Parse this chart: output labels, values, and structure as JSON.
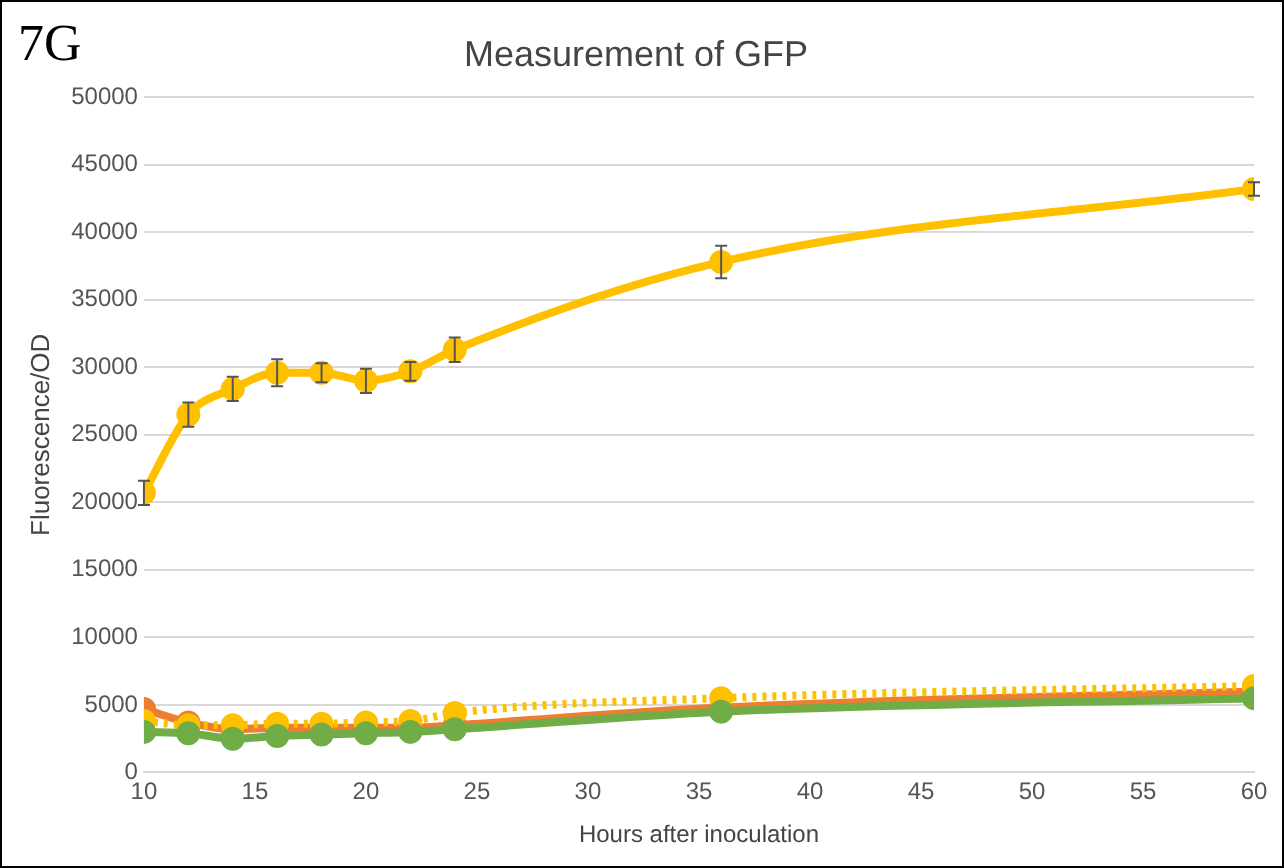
{
  "chart_data": {
    "type": "line",
    "title": "Measurement of GFP",
    "xlabel": "Hours after inoculation",
    "ylabel": "Fluorescence/OD",
    "annotations": [
      "7G"
    ],
    "x": [
      10,
      12,
      14,
      16,
      18,
      20,
      22,
      24,
      36,
      60
    ],
    "series": [
      {
        "color": "#ffc000",
        "values": [
          20700,
          26500,
          28400,
          29600,
          29600,
          29000,
          29700,
          31300,
          37800,
          43200
        ],
        "errors": [
          900,
          900,
          900,
          1000,
          700,
          900,
          700,
          900,
          1200,
          500
        ]
      },
      {
        "color": "#ed7d31",
        "values": [
          4700,
          3700,
          3200,
          3300,
          3300,
          3300,
          3300,
          3500,
          4800,
          6000
        ]
      },
      {
        "color": "#ffc000",
        "line_style": "dotted",
        "values": [
          3800,
          3500,
          3500,
          3600,
          3600,
          3700,
          3800,
          4400,
          5500,
          6400
        ]
      },
      {
        "color": "#70ad47",
        "values": [
          3000,
          2900,
          2500,
          2700,
          2800,
          2900,
          3000,
          3200,
          4500,
          5500
        ]
      }
    ],
    "xlim": [
      10,
      60
    ],
    "xticks": [
      10,
      15,
      20,
      25,
      30,
      35,
      40,
      45,
      50,
      55,
      60
    ],
    "ylim": [
      0,
      50000
    ],
    "yticks": [
      0,
      5000,
      10000,
      15000,
      20000,
      25000,
      30000,
      35000,
      40000,
      45000,
      50000
    ],
    "grid": "y",
    "legend": false,
    "marker": "circle",
    "line_style": "solid"
  }
}
